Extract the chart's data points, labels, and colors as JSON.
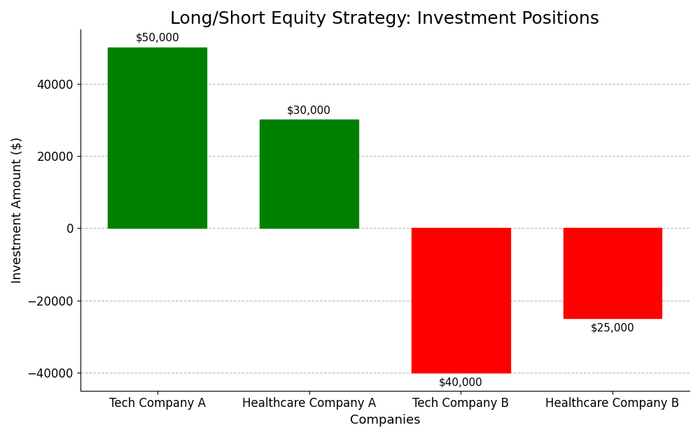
{
  "categories": [
    "Tech Company A",
    "Healthcare Company A",
    "Tech Company B",
    "Healthcare Company B"
  ],
  "values": [
    50000,
    30000,
    -40000,
    -25000
  ],
  "bar_colors": [
    "#008000",
    "#008000",
    "#ff0000",
    "#ff0000"
  ],
  "annotations": [
    "$50,000",
    "$30,000",
    "$40,000",
    "$25,000"
  ],
  "annotation_positions": [
    "top_outside",
    "top_outside",
    "bottom_outside",
    "bottom_outside"
  ],
  "title": "Long/Short Equity Strategy: Investment Positions",
  "xlabel": "Companies",
  "ylabel": "Investment Amount ($)",
  "ylim": [
    -45000,
    55000
  ],
  "background_color": "#ffffff",
  "grid_color": "#aaaaaa",
  "title_fontsize": 18,
  "axis_label_fontsize": 13,
  "tick_fontsize": 12,
  "annotation_fontsize": 11,
  "bar_width": 0.65
}
